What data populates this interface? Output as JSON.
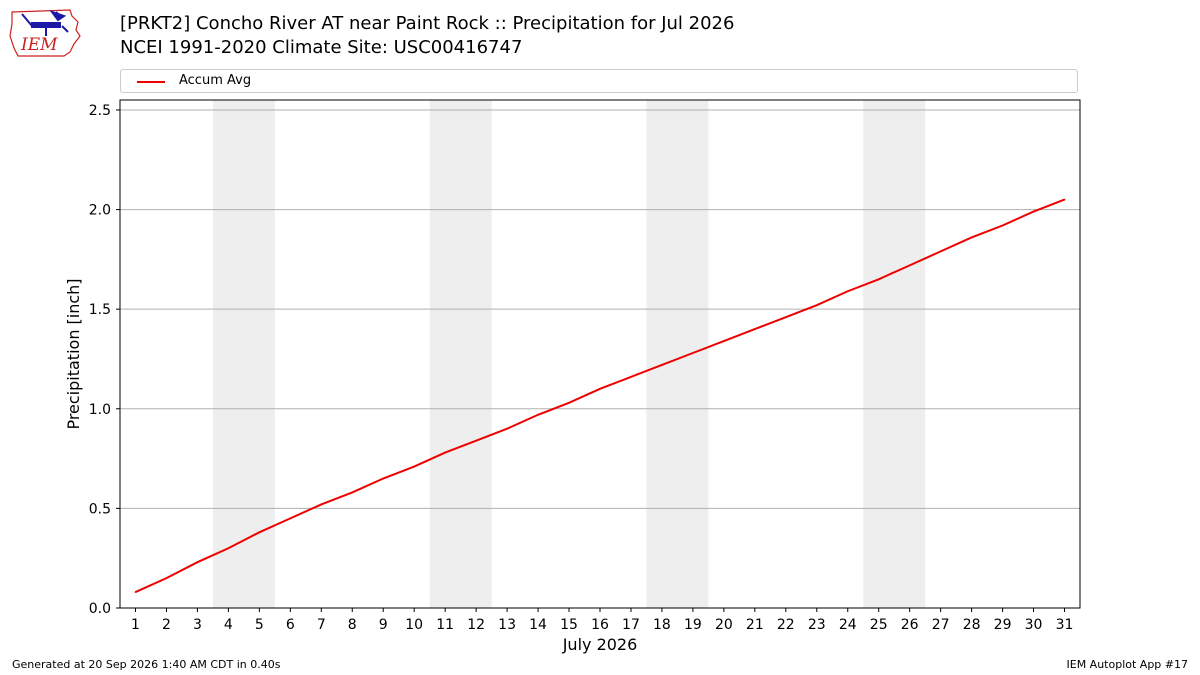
{
  "header": {
    "title_line1": "[PRKT2] Concho River  AT near Paint Rock :: Precipitation for Jul 2026",
    "title_line2": "NCEI 1991-2020 Climate Site: USC00416747",
    "logo_text": "IEM"
  },
  "legend": {
    "label": "Accum Avg"
  },
  "footer": {
    "left": "Generated at 20 Sep 2026 1:40 AM CDT in 0.40s",
    "right": "IEM Autoplot App #17"
  },
  "colors": {
    "line": "#ee0000",
    "weekend_band": "#eeeeee",
    "grid": "#b0b0b0",
    "logo_blue": "#1a1aa6",
    "logo_red": "#cc2222"
  },
  "chart_data": {
    "type": "line",
    "title": "[PRKT2] Concho River  AT near Paint Rock :: Precipitation for Jul 2026",
    "subtitle": "NCEI 1991-2020 Climate Site: USC00416747",
    "xlabel": "July 2026",
    "ylabel": "Precipitation [inch]",
    "xlim": [
      0.5,
      31.5
    ],
    "ylim": [
      0,
      2.55
    ],
    "x_ticks": [
      1,
      2,
      3,
      4,
      5,
      6,
      7,
      8,
      9,
      10,
      11,
      12,
      13,
      14,
      15,
      16,
      17,
      18,
      19,
      20,
      21,
      22,
      23,
      24,
      25,
      26,
      27,
      28,
      29,
      30,
      31
    ],
    "y_ticks": [
      0.0,
      0.5,
      1.0,
      1.5,
      2.0,
      2.5
    ],
    "y_tick_labels": [
      "0.0",
      "0.5",
      "1.0",
      "1.5",
      "2.0",
      "2.5"
    ],
    "grid": "horizontal",
    "legend_position": "top",
    "shaded_bands": [
      [
        3.5,
        5.5
      ],
      [
        10.5,
        12.5
      ],
      [
        17.5,
        19.5
      ],
      [
        24.5,
        26.5
      ]
    ],
    "series": [
      {
        "name": "Accum Avg",
        "color": "#ee0000",
        "x": [
          1,
          2,
          3,
          4,
          5,
          6,
          7,
          8,
          9,
          10,
          11,
          12,
          13,
          14,
          15,
          16,
          17,
          18,
          19,
          20,
          21,
          22,
          23,
          24,
          25,
          26,
          27,
          28,
          29,
          30,
          31
        ],
        "y": [
          0.08,
          0.15,
          0.23,
          0.3,
          0.38,
          0.45,
          0.52,
          0.58,
          0.65,
          0.71,
          0.78,
          0.84,
          0.9,
          0.97,
          1.03,
          1.1,
          1.16,
          1.22,
          1.28,
          1.34,
          1.4,
          1.46,
          1.52,
          1.59,
          1.65,
          1.72,
          1.79,
          1.86,
          1.92,
          1.99,
          2.05
        ]
      }
    ]
  }
}
